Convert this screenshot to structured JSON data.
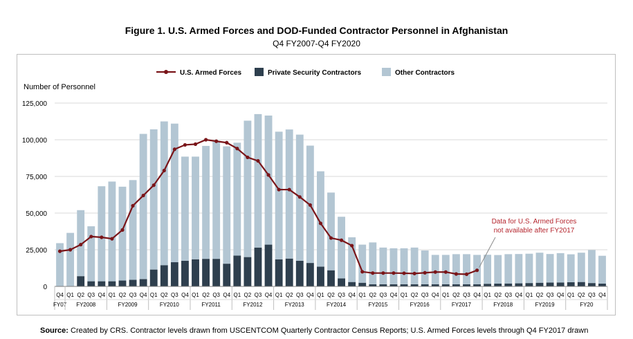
{
  "title": "Figure 1. U.S. Armed Forces and DOD-Funded Contractor Personnel in Afghanistan",
  "subtitle": "Q4 FY2007-Q4 FY2020",
  "source_label": "Source:",
  "source_text": "Created by CRS. Contractor levels drawn from USCENTCOM Quarterly Contractor Census Reports; U.S. Armed Forces levels through Q4 FY2017 drawn",
  "chart_data": {
    "type": "bar",
    "stacked": true,
    "ylabel": "Number of Personnel",
    "ylim": [
      0,
      125000
    ],
    "yticks": [
      0,
      25000,
      50000,
      75000,
      100000,
      125000
    ],
    "ytick_labels": [
      "0",
      "25,000",
      "50,000",
      "75,000",
      "100,000",
      "125,000"
    ],
    "gridlines": true,
    "legend_position": "top-center",
    "categories": [
      "Q4",
      "Q1",
      "Q2",
      "Q3",
      "Q4",
      "Q1",
      "Q2",
      "Q3",
      "Q4",
      "Q1",
      "Q2",
      "Q3",
      "Q4",
      "Q1",
      "Q2",
      "Q3",
      "Q4",
      "Q1",
      "Q2",
      "Q3",
      "Q4",
      "Q1",
      "Q2",
      "Q3",
      "Q4",
      "Q1",
      "Q2",
      "Q3",
      "Q4",
      "Q1",
      "Q2",
      "Q3",
      "Q4",
      "Q1",
      "Q2",
      "Q3",
      "Q4",
      "Q1",
      "Q2",
      "Q3",
      "Q4",
      "Q1",
      "Q2",
      "Q3",
      "Q4",
      "Q1",
      "Q2",
      "Q3",
      "Q4",
      "Q1",
      "Q2",
      "Q3",
      "Q4"
    ],
    "fiscal_years": [
      {
        "label": "FY07",
        "count": 1
      },
      {
        "label": "FY2008",
        "count": 4
      },
      {
        "label": "FY2009",
        "count": 4
      },
      {
        "label": "FY2010",
        "count": 4
      },
      {
        "label": "FY2011",
        "count": 4
      },
      {
        "label": "FY2012",
        "count": 4
      },
      {
        "label": "FY2013",
        "count": 4
      },
      {
        "label": "FY2014",
        "count": 4
      },
      {
        "label": "FY2015",
        "count": 4
      },
      {
        "label": "FY2016",
        "count": 4
      },
      {
        "label": "FY2017",
        "count": 4
      },
      {
        "label": "FY2018",
        "count": 4
      },
      {
        "label": "FY2019",
        "count": 4
      },
      {
        "label": "FY20",
        "count": 4
      }
    ],
    "series": [
      {
        "name": "Private Security Contractors",
        "kind": "bar",
        "color": "#2e3f4e",
        "values": [
          0,
          0,
          7000,
          3500,
          3500,
          3500,
          4000,
          4500,
          5000,
          11500,
          14500,
          16500,
          17500,
          18500,
          18800,
          18800,
          15500,
          21000,
          20000,
          26500,
          28500,
          18500,
          19000,
          17500,
          16000,
          13500,
          11000,
          5500,
          3000,
          2500,
          1500,
          1500,
          1500,
          1500,
          1500,
          1500,
          1500,
          1500,
          1500,
          1500,
          1500,
          1800,
          1900,
          2000,
          2100,
          2300,
          2500,
          2600,
          2700,
          2900,
          3000,
          2300,
          1900
        ]
      },
      {
        "name": "Other Contractors",
        "kind": "bar",
        "color": "#b3c6d3",
        "values": [
          29500,
          36500,
          45000,
          37500,
          64800,
          68000,
          64000,
          68000,
          99000,
          95600,
          98000,
          94500,
          71000,
          70000,
          77000,
          80000,
          80000,
          77000,
          93000,
          91000,
          88000,
          87000,
          88000,
          86000,
          80000,
          65000,
          53000,
          42000,
          30500,
          26000,
          28500,
          25000,
          24500,
          24500,
          25000,
          23000,
          20000,
          20000,
          20500,
          20500,
          20000,
          19800,
          19500,
          20000,
          20000,
          20000,
          20500,
          19500,
          20000,
          19000,
          20000,
          22500,
          19000
        ]
      },
      {
        "name": "U.S. Armed Forces",
        "kind": "line",
        "color": "#7a1519",
        "values": [
          24000,
          25000,
          28500,
          34000,
          33500,
          32500,
          38500,
          55000,
          62000,
          69000,
          79000,
          93500,
          96500,
          97000,
          100000,
          99000,
          98000,
          94000,
          88000,
          85600,
          76000,
          66000,
          66000,
          61000,
          55500,
          43000,
          33000,
          31500,
          27800,
          10000,
          9100,
          9100,
          9100,
          9000,
          8800,
          9300,
          9800,
          9800,
          8500,
          8300,
          11000,
          null,
          null,
          null,
          null,
          null,
          null,
          null,
          null,
          null,
          null,
          null,
          null
        ]
      }
    ],
    "annotation": {
      "lines": [
        "Data for U.S. Armed Forces",
        "not available after FY2017"
      ],
      "color": "#b5262e"
    }
  }
}
